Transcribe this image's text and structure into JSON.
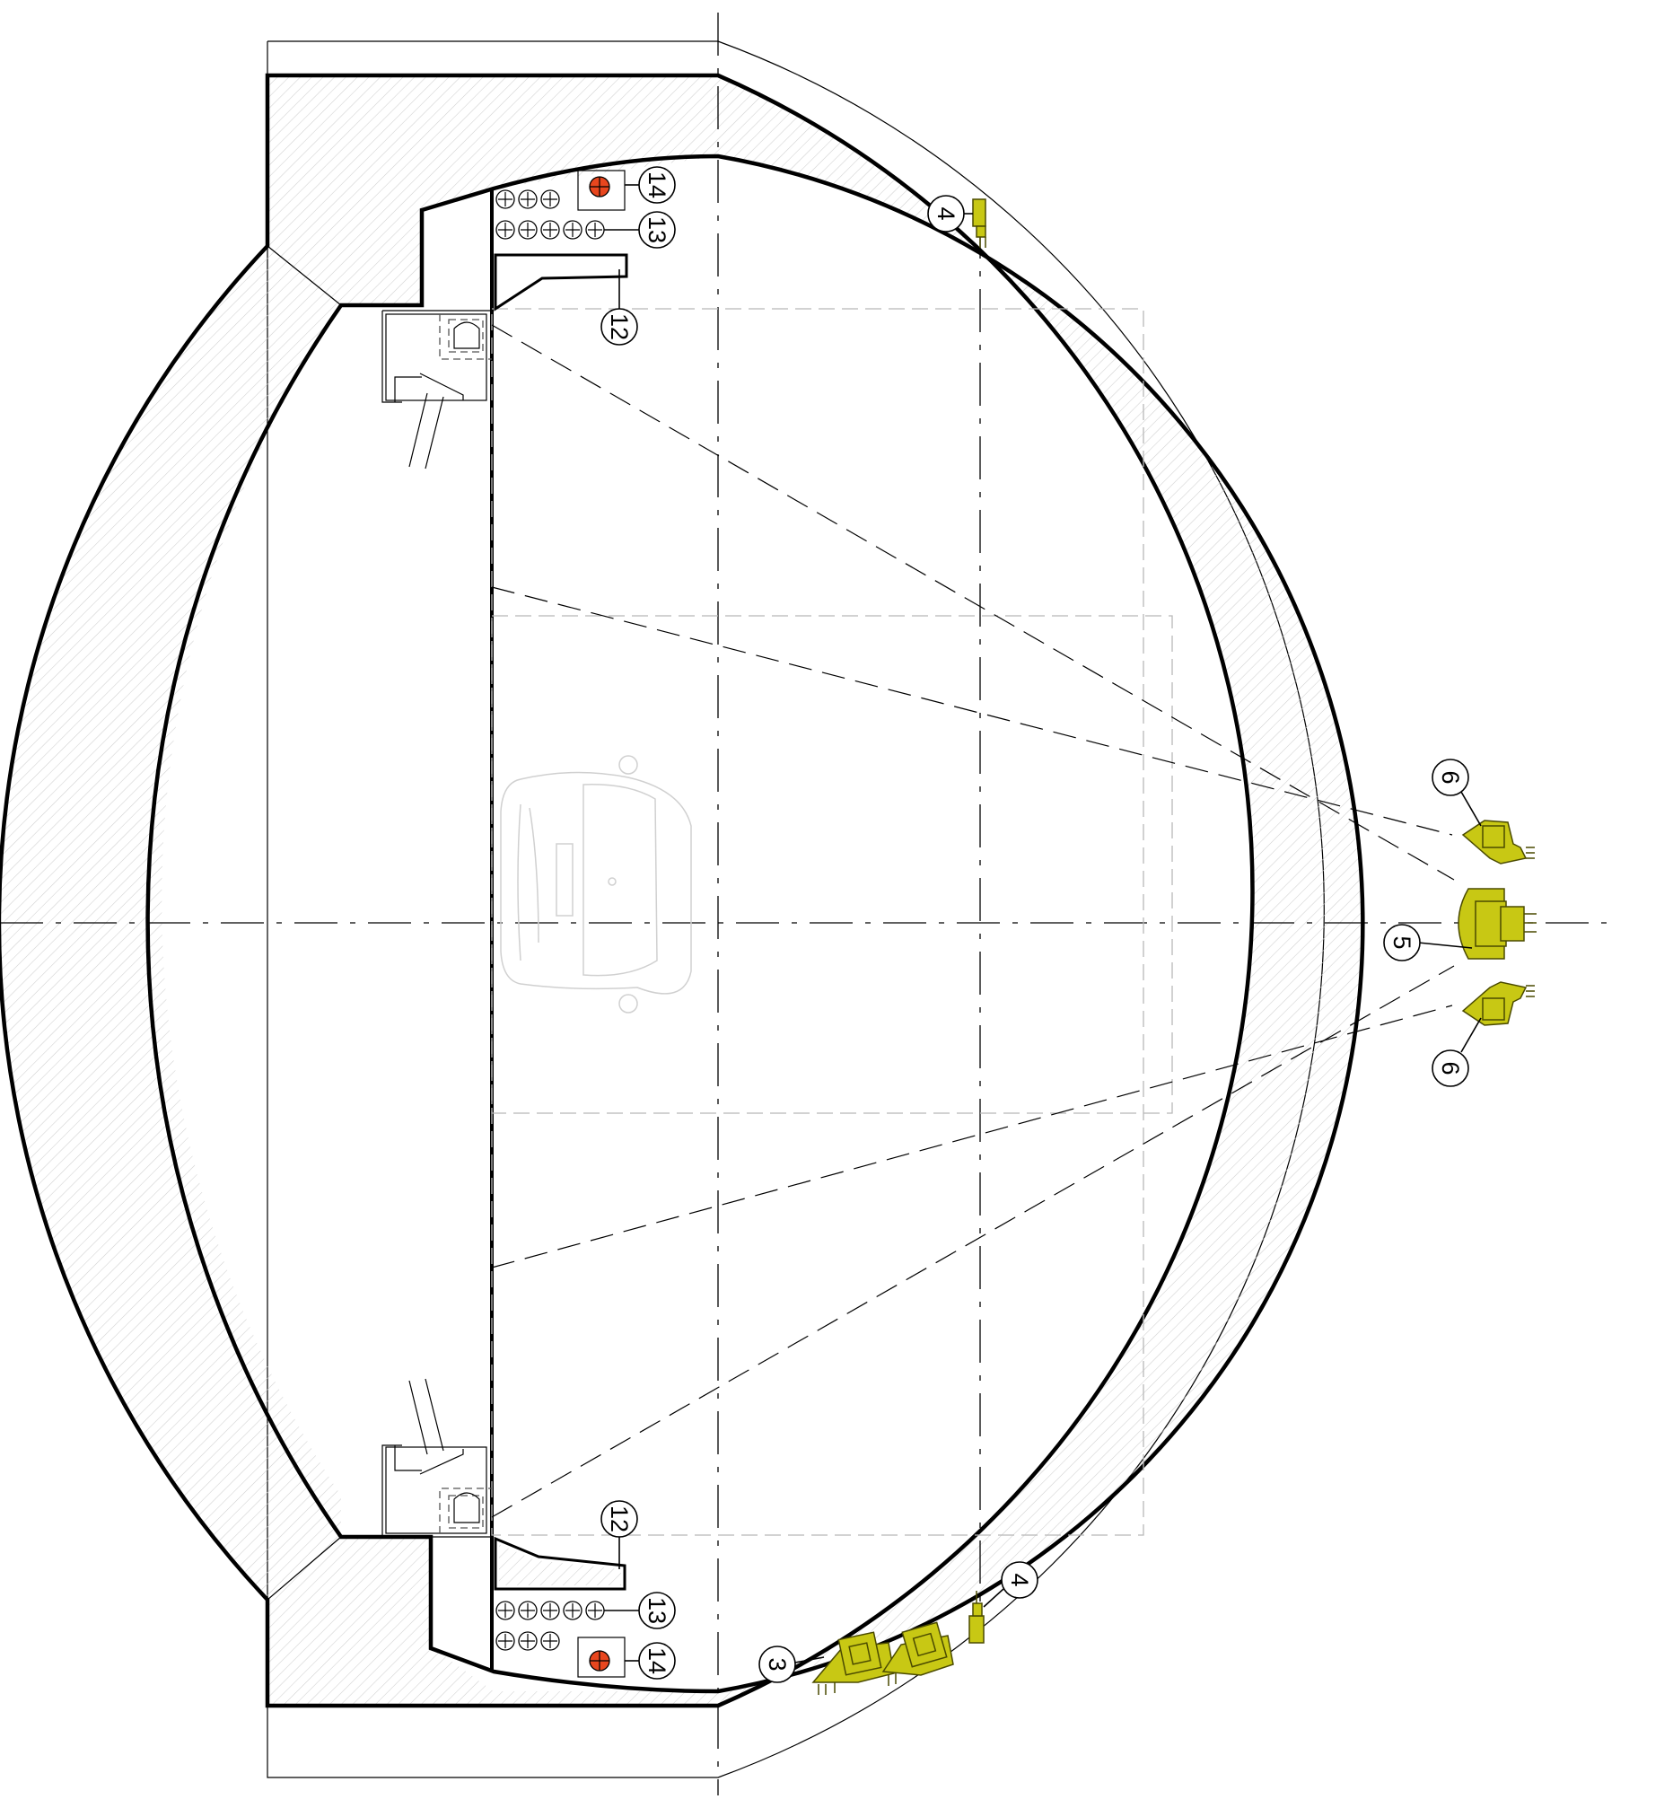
{
  "colors": {
    "device_fill": "#c8c814",
    "red_marker": "#e8461e",
    "hatch": "#cfcfcf"
  },
  "callouts": {
    "n3": "3",
    "n4": "4",
    "n5": "5",
    "n6": "6",
    "n12": "12",
    "n13": "13",
    "n14": "14"
  }
}
